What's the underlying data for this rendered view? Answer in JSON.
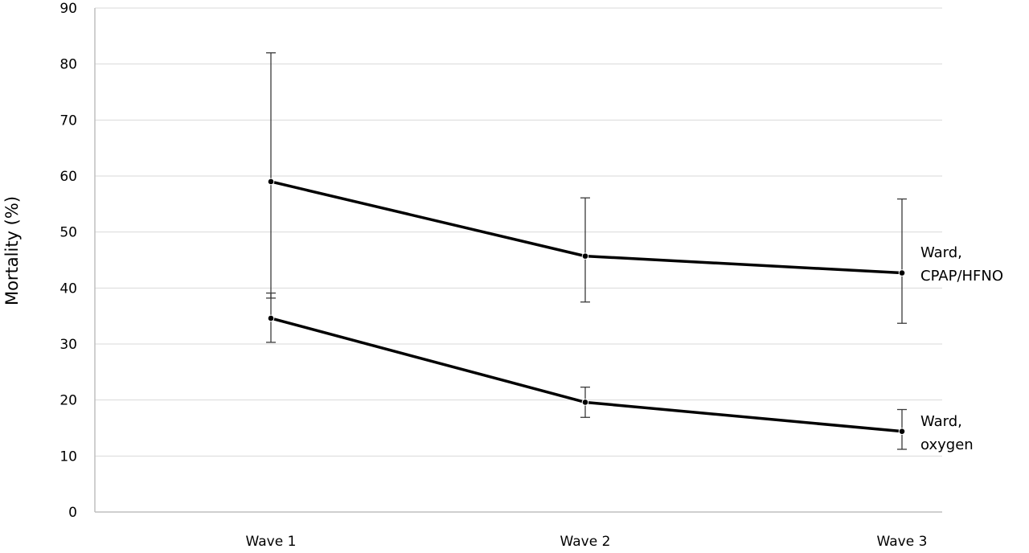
{
  "chart_data": {
    "type": "line",
    "title": "",
    "xlabel": "",
    "ylabel": "Mortality (%)",
    "categories": [
      "Wave 1",
      "Wave 2",
      "Wave 3"
    ],
    "ylim": [
      0,
      90
    ],
    "yticks": [
      0,
      10,
      20,
      30,
      40,
      50,
      60,
      70,
      80,
      90
    ],
    "grid": true,
    "legend": "none",
    "series": [
      {
        "label_lines": [
          "Ward,",
          "CPAP/HFNO"
        ],
        "values": [
          59,
          45.7,
          42.7
        ],
        "error_low": [
          38.2,
          37.5,
          33.7
        ],
        "error_high": [
          82,
          56.1,
          55.9
        ],
        "color": "#000000"
      },
      {
        "label_lines": [
          "Ward,",
          "oxygen"
        ],
        "values": [
          34.6,
          19.6,
          14.4
        ],
        "error_low": [
          30.3,
          16.9,
          11.2
        ],
        "error_high": [
          39.1,
          22.3,
          18.3
        ],
        "color": "#000000"
      }
    ]
  }
}
